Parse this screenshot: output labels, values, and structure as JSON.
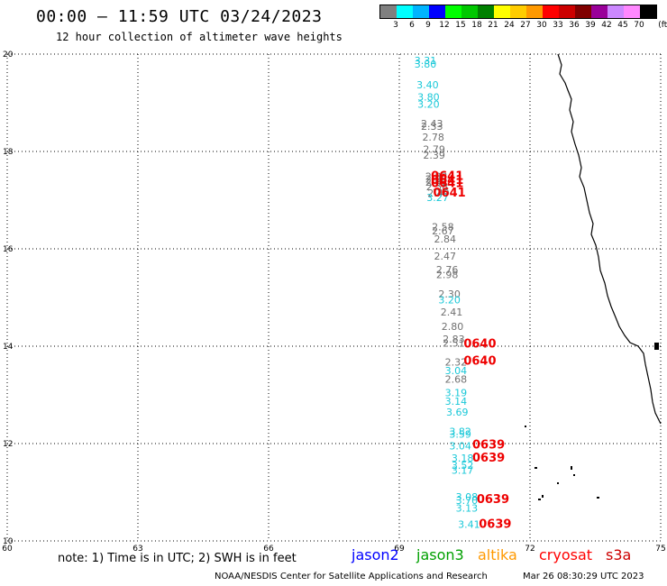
{
  "header": {
    "title": "00:00 – 11:59 UTC 03/24/2023",
    "subtitle": "12 hour collection of altimeter wave heights"
  },
  "colorbar": {
    "colors": [
      "#808080",
      "#00ffff",
      "#00b4ff",
      "#0000ff",
      "#00ff00",
      "#00c800",
      "#008000",
      "#ffff00",
      "#ffcc00",
      "#ff9900",
      "#ff0000",
      "#cc0000",
      "#800000",
      "#990099",
      "#cc88ff",
      "#ff88ff",
      "#000000"
    ],
    "labels": [
      "3",
      "6",
      "9",
      "12",
      "15",
      "18",
      "21",
      "24",
      "27",
      "30",
      "33",
      "36",
      "39",
      "42",
      "45",
      "70"
    ],
    "unit": "(ft)"
  },
  "map": {
    "lon_ticks": [
      "60",
      "63",
      "66",
      "69",
      "72",
      "75"
    ],
    "lat_ticks": [
      "10",
      "12",
      "14",
      "16",
      "18",
      "20"
    ],
    "x_range": [
      60,
      75
    ],
    "y_range": [
      10,
      20
    ],
    "grid": "dotted"
  },
  "swh_points": [
    {
      "lon": 69.6,
      "lat": 19.8,
      "label": "3.31",
      "color": "#19c8d8"
    },
    {
      "lon": 69.6,
      "lat": 19.72,
      "label": "3.80",
      "color": "#19c8d8"
    },
    {
      "lon": 69.65,
      "lat": 19.3,
      "label": "3.40",
      "color": "#19c8d8"
    },
    {
      "lon": 69.67,
      "lat": 19.05,
      "label": "3.80",
      "color": "#19c8d8"
    },
    {
      "lon": 69.67,
      "lat": 18.9,
      "label": "3.20",
      "color": "#19c8d8"
    },
    {
      "lon": 69.75,
      "lat": 18.5,
      "label": "2.43",
      "color": "#707070"
    },
    {
      "lon": 69.75,
      "lat": 18.44,
      "label": "2.33",
      "color": "#707070"
    },
    {
      "lon": 69.78,
      "lat": 18.22,
      "label": "2.78",
      "color": "#707070"
    },
    {
      "lon": 69.8,
      "lat": 17.97,
      "label": "2.79",
      "color": "#707070"
    },
    {
      "lon": 69.8,
      "lat": 17.85,
      "label": "2.39",
      "color": "#707070"
    },
    {
      "lon": 69.85,
      "lat": 17.42,
      "label": "2.83",
      "color": "#707070"
    },
    {
      "lon": 69.85,
      "lat": 17.36,
      "label": "2.98",
      "color": "#707070"
    },
    {
      "lon": 69.85,
      "lat": 17.3,
      "label": "2.61",
      "color": "#707070"
    },
    {
      "lon": 69.87,
      "lat": 17.2,
      "label": "2.58",
      "color": "#707070"
    },
    {
      "lon": 69.9,
      "lat": 17.07,
      "label": "2.49",
      "color": "#707070"
    },
    {
      "lon": 69.88,
      "lat": 16.98,
      "label": "3.27",
      "color": "#19c8d8"
    },
    {
      "lon": 70.0,
      "lat": 16.38,
      "label": "2.58",
      "color": "#707070"
    },
    {
      "lon": 70.0,
      "lat": 16.3,
      "label": "2.67",
      "color": "#707070"
    },
    {
      "lon": 70.05,
      "lat": 16.13,
      "label": "2.84",
      "color": "#707070"
    },
    {
      "lon": 70.05,
      "lat": 15.78,
      "label": "2.47",
      "color": "#707070"
    },
    {
      "lon": 70.1,
      "lat": 15.5,
      "label": "2.76",
      "color": "#707070"
    },
    {
      "lon": 70.1,
      "lat": 15.4,
      "label": "2.98",
      "color": "#707070"
    },
    {
      "lon": 70.15,
      "lat": 15.0,
      "label": "2.30",
      "color": "#707070"
    },
    {
      "lon": 70.15,
      "lat": 14.88,
      "label": "3.20",
      "color": "#19c8d8"
    },
    {
      "lon": 70.2,
      "lat": 14.63,
      "label": "2.41",
      "color": "#707070"
    },
    {
      "lon": 70.22,
      "lat": 14.33,
      "label": "2.80",
      "color": "#707070"
    },
    {
      "lon": 70.25,
      "lat": 14.07,
      "label": "2.83",
      "color": "#707070"
    },
    {
      "lon": 70.25,
      "lat": 13.99,
      "label": "2.51",
      "color": "#707070"
    },
    {
      "lon": 70.3,
      "lat": 13.6,
      "label": "2.32",
      "color": "#707070"
    },
    {
      "lon": 70.3,
      "lat": 13.43,
      "label": "3.04",
      "color": "#19c8d8"
    },
    {
      "lon": 70.3,
      "lat": 13.25,
      "label": "2.68",
      "color": "#707070"
    },
    {
      "lon": 70.3,
      "lat": 12.97,
      "label": "3.19",
      "color": "#19c8d8"
    },
    {
      "lon": 70.3,
      "lat": 12.8,
      "label": "3.14",
      "color": "#19c8d8"
    },
    {
      "lon": 70.33,
      "lat": 12.57,
      "label": "3.69",
      "color": "#19c8d8"
    },
    {
      "lon": 70.4,
      "lat": 12.18,
      "label": "3.82",
      "color": "#19c8d8"
    },
    {
      "lon": 70.4,
      "lat": 12.12,
      "label": "3.59",
      "color": "#19c8d8"
    },
    {
      "lon": 70.4,
      "lat": 11.88,
      "label": "3.04",
      "color": "#19c8d8"
    },
    {
      "lon": 70.45,
      "lat": 11.63,
      "label": "3.18",
      "color": "#19c8d8"
    },
    {
      "lon": 70.45,
      "lat": 11.48,
      "label": "3.52",
      "color": "#19c8d8"
    },
    {
      "lon": 70.45,
      "lat": 11.38,
      "label": "3.17",
      "color": "#19c8d8"
    },
    {
      "lon": 70.55,
      "lat": 10.83,
      "label": "3.08",
      "color": "#19c8d8"
    },
    {
      "lon": 70.55,
      "lat": 10.76,
      "label": "3.70",
      "color": "#19c8d8"
    },
    {
      "lon": 70.55,
      "lat": 10.6,
      "label": "3.13",
      "color": "#19c8d8"
    },
    {
      "lon": 70.6,
      "lat": 10.27,
      "label": "3.41",
      "color": "#19c8d8"
    }
  ],
  "time_labels": [
    {
      "lon": 70.1,
      "lat": 17.42,
      "label": "0641",
      "color": "#ee0000"
    },
    {
      "lon": 70.1,
      "lat": 17.33,
      "label": "0641",
      "color": "#ee0000"
    },
    {
      "lon": 70.1,
      "lat": 17.27,
      "label": "0641",
      "color": "#ee0000"
    },
    {
      "lon": 70.15,
      "lat": 17.07,
      "label": "0641",
      "color": "#ee0000"
    },
    {
      "lon": 70.85,
      "lat": 13.97,
      "label": "0640",
      "color": "#ee0000"
    },
    {
      "lon": 70.85,
      "lat": 13.62,
      "label": "0640",
      "color": "#ee0000"
    },
    {
      "lon": 71.05,
      "lat": 11.9,
      "label": "0639",
      "color": "#ee0000"
    },
    {
      "lon": 71.05,
      "lat": 11.63,
      "label": "0639",
      "color": "#ee0000"
    },
    {
      "lon": 71.15,
      "lat": 10.78,
      "label": "0639",
      "color": "#ee0000"
    },
    {
      "lon": 71.2,
      "lat": 10.27,
      "label": "0639",
      "color": "#ee0000"
    }
  ],
  "footer": {
    "note": "note: 1) Time is in UTC; 2) SWH is in feet",
    "satellites": [
      {
        "name": "jason2",
        "color": "#0000ff"
      },
      {
        "name": "jason3",
        "color": "#00a000"
      },
      {
        "name": "altika",
        "color": "#ff9900"
      },
      {
        "name": "cryosat",
        "color": "#ff0000"
      },
      {
        "name": "s3a",
        "color": "#cc0000"
      }
    ],
    "credit": "NOAA/NESDIS Center for Satellite Applications and Research",
    "timestamp": "Mar 26 08:30:29 UTC 2023"
  }
}
